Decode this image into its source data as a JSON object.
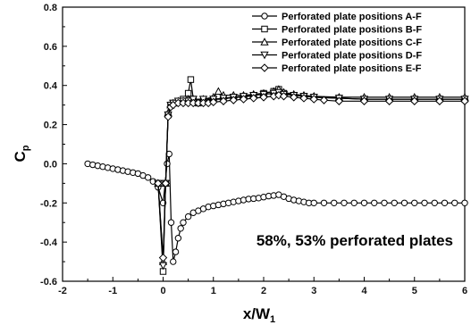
{
  "chart_data": {
    "type": "line",
    "xlabel_main": "x/W",
    "xlabel_sub": "1",
    "ylabel_main": "C",
    "ylabel_sub": "p",
    "xlim": [
      -2,
      6
    ],
    "ylim": [
      -0.6,
      0.8
    ],
    "xticks": [
      "-2",
      "-1",
      "0",
      "1",
      "2",
      "3",
      "4",
      "5",
      "6"
    ],
    "yticks": [
      "-0.6",
      "-0.4",
      "-0.2",
      "0.0",
      "0.2",
      "0.4",
      "0.6",
      "0.8"
    ],
    "legend_position": "top-right",
    "annotation": "58%, 53% perforated plates",
    "grid": false,
    "series": [
      {
        "name": "Perforated plate positions A-F",
        "marker": "circle",
        "x": [
          -1.5,
          -1.4,
          -1.3,
          -1.2,
          -1.1,
          -1.0,
          -0.9,
          -0.8,
          -0.7,
          -0.6,
          -0.5,
          -0.4,
          -0.3,
          -0.2,
          -0.1,
          0.0,
          0.04,
          0.08,
          0.12,
          0.16,
          0.2,
          0.25,
          0.3,
          0.35,
          0.4,
          0.5,
          0.6,
          0.7,
          0.8,
          0.9,
          1.0,
          1.1,
          1.2,
          1.3,
          1.4,
          1.5,
          1.6,
          1.7,
          1.8,
          1.9,
          2.0,
          2.1,
          2.2,
          2.3,
          2.4,
          2.5,
          2.6,
          2.7,
          2.8,
          2.9,
          3.0,
          3.2,
          3.4,
          3.6,
          3.8,
          4.0,
          4.2,
          4.4,
          4.6,
          4.8,
          5.0,
          5.2,
          5.4,
          5.6,
          5.8,
          6.0
        ],
        "y": [
          0.0,
          -0.005,
          -0.01,
          -0.015,
          -0.02,
          -0.025,
          -0.03,
          -0.035,
          -0.04,
          -0.045,
          -0.05,
          -0.06,
          -0.07,
          -0.09,
          -0.12,
          -0.2,
          -0.1,
          0.0,
          0.05,
          -0.3,
          -0.5,
          -0.45,
          -0.38,
          -0.33,
          -0.3,
          -0.27,
          -0.25,
          -0.24,
          -0.23,
          -0.22,
          -0.215,
          -0.21,
          -0.205,
          -0.2,
          -0.195,
          -0.19,
          -0.185,
          -0.18,
          -0.178,
          -0.175,
          -0.17,
          -0.165,
          -0.162,
          -0.158,
          -0.168,
          -0.178,
          -0.185,
          -0.19,
          -0.195,
          -0.2,
          -0.2,
          -0.2,
          -0.2,
          -0.2,
          -0.2,
          -0.2,
          -0.2,
          -0.2,
          -0.2,
          -0.2,
          -0.2,
          -0.2,
          -0.2,
          -0.2,
          -0.2,
          -0.2
        ]
      },
      {
        "name": "Perforated plate positions B-F",
        "marker": "square",
        "x": [
          -0.1,
          0.0,
          0.05,
          0.1,
          0.15,
          0.2,
          0.3,
          0.4,
          0.5,
          0.55,
          0.6,
          0.7,
          0.8,
          1.0,
          1.2,
          1.4,
          1.6,
          1.8,
          2.0,
          2.2,
          2.3,
          2.4,
          2.6,
          2.8,
          3.0,
          3.5,
          4.0,
          4.5,
          5.0,
          5.5,
          6.0
        ],
        "y": [
          -0.1,
          -0.55,
          -0.1,
          0.25,
          0.3,
          0.31,
          0.32,
          0.33,
          0.36,
          0.43,
          0.33,
          0.31,
          0.32,
          0.33,
          0.33,
          0.34,
          0.34,
          0.35,
          0.36,
          0.37,
          0.38,
          0.36,
          0.35,
          0.345,
          0.34,
          0.335,
          0.33,
          0.33,
          0.33,
          0.33,
          0.33
        ]
      },
      {
        "name": "Perforated plate positions C-F",
        "marker": "triangle-up",
        "x": [
          -0.1,
          0.0,
          0.05,
          0.1,
          0.15,
          0.2,
          0.3,
          0.4,
          0.5,
          0.6,
          0.8,
          1.0,
          1.1,
          1.2,
          1.4,
          1.6,
          1.8,
          2.0,
          2.2,
          2.3,
          2.4,
          2.6,
          2.8,
          3.0,
          3.5,
          4.0,
          4.5,
          5.0,
          5.5,
          6.0
        ],
        "y": [
          -0.1,
          -0.5,
          -0.1,
          0.26,
          0.3,
          0.31,
          0.32,
          0.32,
          0.33,
          0.33,
          0.33,
          0.34,
          0.37,
          0.35,
          0.35,
          0.35,
          0.355,
          0.36,
          0.37,
          0.38,
          0.365,
          0.355,
          0.35,
          0.345,
          0.34,
          0.34,
          0.34,
          0.34,
          0.34,
          0.34
        ]
      },
      {
        "name": "Perforated plate positions D-F",
        "marker": "triangle-down",
        "x": [
          -0.1,
          0.0,
          0.05,
          0.1,
          0.15,
          0.2,
          0.3,
          0.4,
          0.5,
          0.6,
          0.8,
          1.0,
          1.2,
          1.4,
          1.6,
          1.8,
          2.0,
          2.2,
          2.3,
          2.4,
          2.6,
          2.8,
          3.0,
          3.5,
          4.0,
          4.5,
          5.0,
          5.5,
          6.0
        ],
        "y": [
          -0.1,
          -0.52,
          -0.1,
          0.25,
          0.3,
          0.31,
          0.32,
          0.32,
          0.32,
          0.33,
          0.33,
          0.33,
          0.335,
          0.34,
          0.345,
          0.35,
          0.355,
          0.36,
          0.365,
          0.355,
          0.35,
          0.345,
          0.34,
          0.335,
          0.33,
          0.33,
          0.33,
          0.33,
          0.33
        ]
      },
      {
        "name": "Perforated plate positions E-F",
        "marker": "diamond",
        "x": [
          -0.1,
          0.0,
          0.05,
          0.1,
          0.15,
          0.2,
          0.3,
          0.4,
          0.5,
          0.6,
          0.7,
          0.8,
          0.9,
          1.0,
          1.2,
          1.4,
          1.6,
          1.8,
          2.0,
          2.2,
          2.3,
          2.4,
          2.6,
          2.8,
          3.0,
          3.2,
          3.5,
          4.0,
          4.5,
          5.0,
          5.5,
          6.0
        ],
        "y": [
          -0.1,
          -0.48,
          -0.1,
          0.24,
          0.29,
          0.3,
          0.31,
          0.31,
          0.31,
          0.31,
          0.31,
          0.31,
          0.31,
          0.315,
          0.32,
          0.325,
          0.33,
          0.335,
          0.34,
          0.345,
          0.35,
          0.345,
          0.34,
          0.335,
          0.33,
          0.325,
          0.32,
          0.32,
          0.32,
          0.32,
          0.32,
          0.32
        ]
      }
    ]
  }
}
